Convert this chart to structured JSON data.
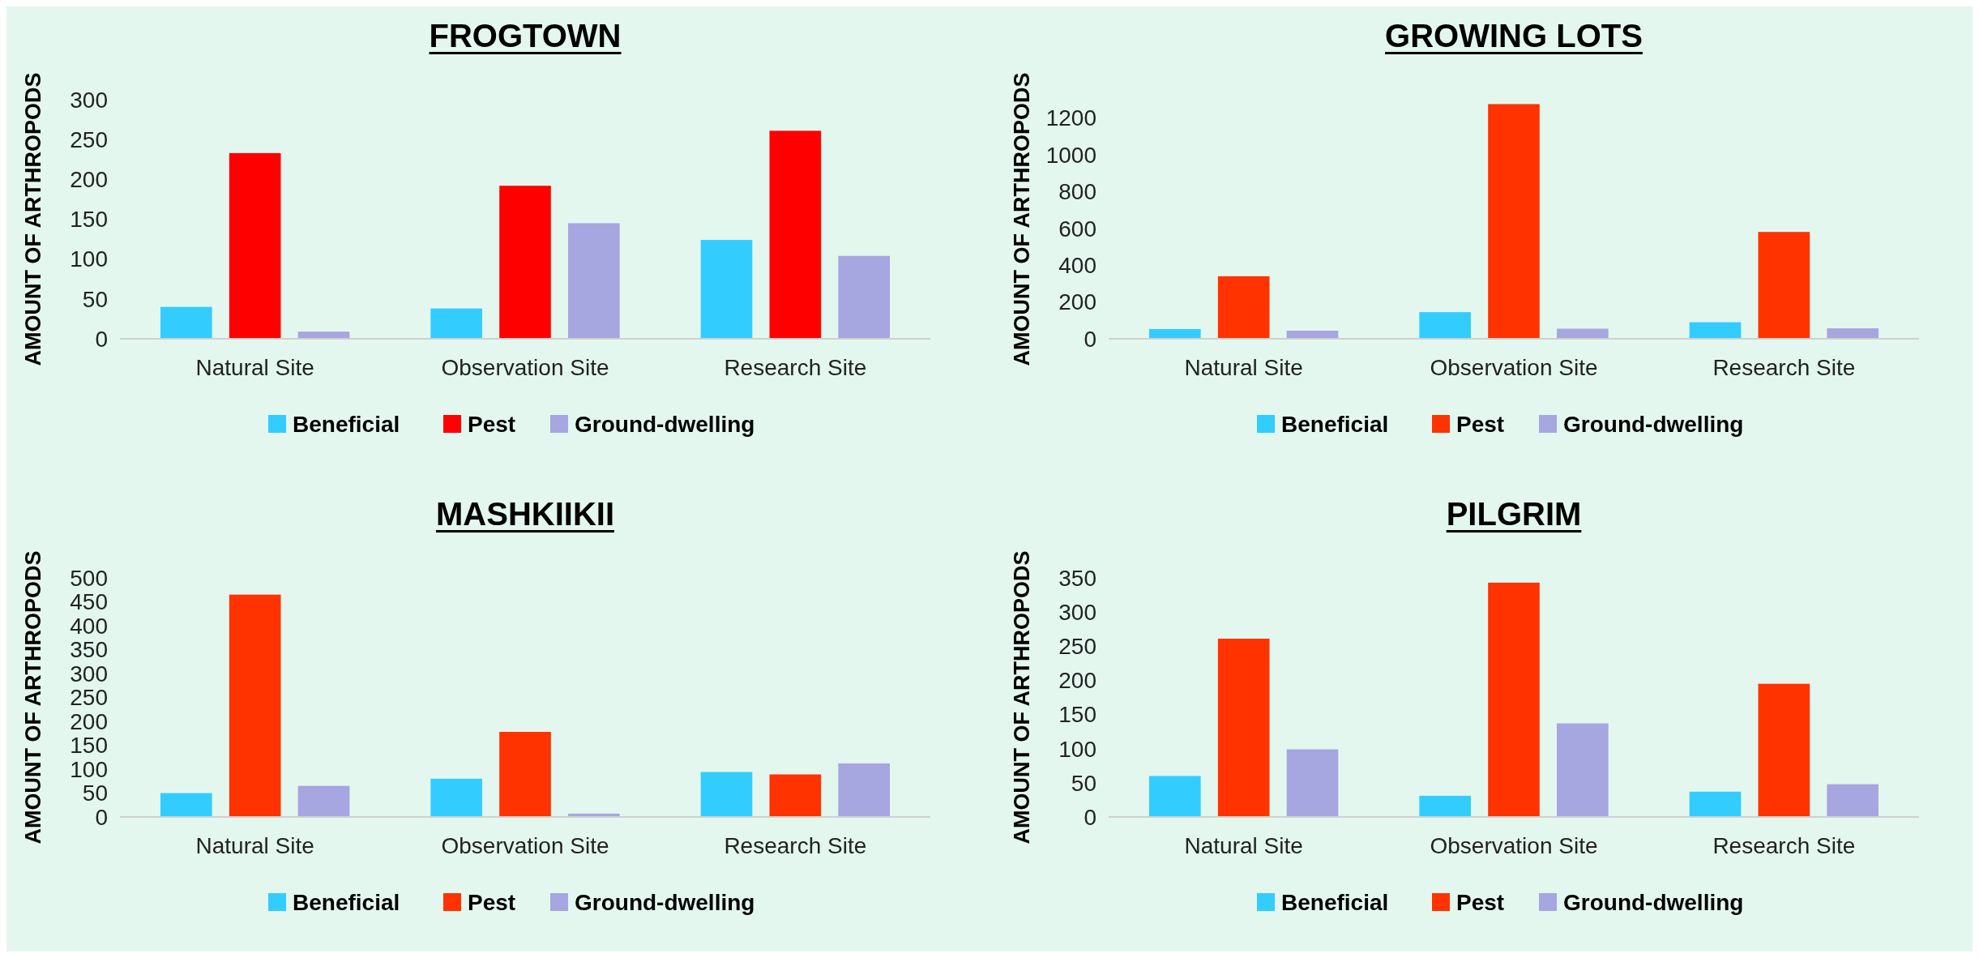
{
  "chart_data": [
    {
      "type": "bar",
      "title": "FROGTOWN",
      "ylabel": "AMOUNT OF ARTHROPODS",
      "categories": [
        "Natural Site",
        "Observation Site",
        "Research Site"
      ],
      "ylim": [
        0,
        300
      ],
      "yticks": [
        0,
        50,
        100,
        150,
        200,
        250,
        300
      ],
      "grid": false,
      "legend": "bottom",
      "series": [
        {
          "name": "Beneficial",
          "color": "#33ccff",
          "values": [
            40,
            38,
            124
          ]
        },
        {
          "name": "Pest",
          "color": "#ff0000",
          "values": [
            233,
            192,
            261
          ]
        },
        {
          "name": "Ground-dwelling",
          "color": "#a6a6e0",
          "values": [
            9,
            145,
            104
          ]
        }
      ]
    },
    {
      "type": "bar",
      "title": "GROWING LOTS",
      "ylabel": "AMOUNT OF ARTHROPODS",
      "categories": [
        "Natural Site",
        "Observation Site",
        "Research Site"
      ],
      "ylim": [
        0,
        1300
      ],
      "yticks": [
        0,
        200,
        400,
        600,
        800,
        1000,
        1200
      ],
      "grid": false,
      "legend": "bottom",
      "series": [
        {
          "name": "Beneficial",
          "color": "#33ccff",
          "values": [
            53,
            145,
            90
          ]
        },
        {
          "name": "Pest",
          "color": "#ff3300",
          "values": [
            340,
            1276,
            581
          ]
        },
        {
          "name": "Ground-dwelling",
          "color": "#a6a6e0",
          "values": [
            44,
            55,
            57
          ]
        }
      ]
    },
    {
      "type": "bar",
      "title": "MASHKIIKII",
      "ylabel": "AMOUNT OF ARTHROPODS",
      "categories": [
        "Natural Site",
        "Observation Site",
        "Research Site"
      ],
      "ylim": [
        0,
        500
      ],
      "yticks": [
        0,
        50,
        100,
        150,
        200,
        250,
        300,
        350,
        400,
        450,
        500
      ],
      "grid": false,
      "legend": "bottom",
      "series": [
        {
          "name": "Beneficial",
          "color": "#33ccff",
          "values": [
            50,
            80,
            94
          ]
        },
        {
          "name": "Pest",
          "color": "#ff3300",
          "values": [
            465,
            178,
            89
          ]
        },
        {
          "name": "Ground-dwelling",
          "color": "#a6a6e0",
          "values": [
            65,
            7,
            112
          ]
        }
      ]
    },
    {
      "type": "bar",
      "title": "PILGRIM",
      "ylabel": "AMOUNT OF ARTHROPODS",
      "categories": [
        "Natural Site",
        "Observation Site",
        "Research Site"
      ],
      "ylim": [
        0,
        350
      ],
      "yticks": [
        0,
        50,
        100,
        150,
        200,
        250,
        300,
        350
      ],
      "grid": false,
      "legend": "bottom",
      "series": [
        {
          "name": "Beneficial",
          "color": "#33ccff",
          "values": [
            60,
            31,
            37
          ]
        },
        {
          "name": "Pest",
          "color": "#ff3300",
          "values": [
            261,
            343,
            195
          ]
        },
        {
          "name": "Ground-dwelling",
          "color": "#a6a6e0",
          "values": [
            99,
            137,
            48
          ]
        }
      ]
    }
  ]
}
